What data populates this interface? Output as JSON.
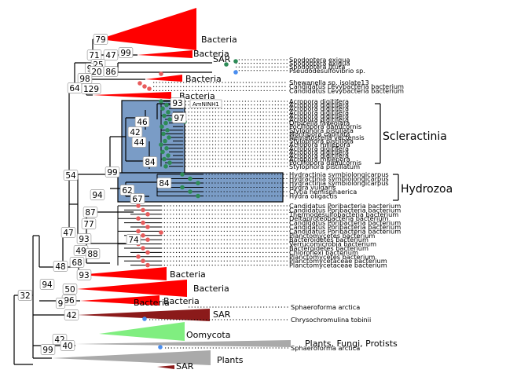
{
  "clade_labels": {
    "bacteria_top": "Bacteria",
    "bacteria_2": "Bacteria",
    "sar_top": "SAR",
    "bacteria_3": "Bacteria",
    "bacteria_4": "Bacteria",
    "scleractinia": "Scleractinia",
    "hydrozoa": "Hydrozoa",
    "bacteria_low1": "Bacteria",
    "bacteria_low2": "Bacteria",
    "bacteria_low3": "Bacteria",
    "bacteria_low4": "Bacteria",
    "sar_low": "SAR",
    "oomycota": "Oomycota",
    "plants_fungi_protists": "Plants, Fungi, Protists",
    "plants": "Plants",
    "sar_bottom": "SAR"
  },
  "callout_label": "AmNINH1",
  "bootstrap": {
    "b79": "79",
    "b71": "71",
    "b47a": "47",
    "b99a": "99",
    "b25": "25",
    "b9a": "9",
    "b20": "20",
    "b86": "86",
    "b98": "98",
    "b129": "129",
    "b64": "64",
    "b93a": "93",
    "b97": "97",
    "b46": "46",
    "b42a": "42",
    "b44": "44",
    "b84a": "84",
    "b99b": "99",
    "b84b": "84",
    "b62": "62",
    "b67": "67",
    "b54": "54",
    "b94a": "94",
    "b87": "87",
    "b77": "77",
    "b47b": "47",
    "b93b": "93",
    "b74": "74",
    "b49": "49",
    "b88": "88",
    "b68": "68",
    "b48": "48",
    "b93c": "93",
    "b50": "50",
    "b94b": "94",
    "b96": "96",
    "b32": "32",
    "b9b": "9",
    "b42b": "42",
    "b42c": "42",
    "b40": "40",
    "b99c": "99"
  },
  "tips_group1": [
    "Spodoptera exigua",
    "Spodoptera exigua",
    "Spodoptera litura",
    "Pseudodesulfovibrio sp."
  ],
  "tips_group2": [
    "Shewanella sp. isolate13",
    "Candidatus Levybacteria bacterium",
    "Candidatus Levybacteria bacterium"
  ],
  "tips_scleractinia": [
    "Acropora digitifera",
    "Acropora digitifera",
    "Acropora digitifera",
    "Acropora digitifera",
    "Acropora digitifera",
    "Acropora digitifera",
    "Orbicella faveolata",
    "Pocillopora damicornis",
    "Stylophora pistillata",
    "Montipora capitata",
    "Nematostella vectensis",
    "Stylophora pistillata",
    "Acropora millepora",
    "Acropora digitifera",
    "Acropora digitifera",
    "Acropora digitifera",
    "Acropora millepora",
    "Pocillopora damicornis",
    "Stylophora pistillatum"
  ],
  "tips_hydrozoa": [
    "Hydractinia symbiolongicarpus",
    "Hydractinia symbiolongicarpus",
    "Hydractinia symbiolongicarpus",
    "Hydra vulgaris",
    "Clytia hemisphaerica",
    "Hydra oligactis"
  ],
  "tips_bacteria_block": [
    "Candidatus Poribacteria bacterium",
    "Candidatus Poribacteria bacterium",
    "Thermodesulfobacteria bacterium",
    "Deltaproteobacteria bacterium",
    "Candidatus Poribacteria bacterium",
    "Candidatus Poribacteria bacterium",
    "Candidatus Poribacteria bacterium",
    "Planctomycetes bacterium",
    "Bacteroidetes bacterium",
    "Verrucomicrobia bacterium",
    "Bacteroidetes bacterium",
    "Chloroflexi bacterium",
    "Planctomycetes bacterium",
    "Planctomycetaceae bacterium",
    "Planctomycetaceae bacterium"
  ],
  "tips_single": {
    "sphaeroforma_1": "Sphaeroforma arctica",
    "chrysochromulina": "Chrysochromulina tobinii",
    "sphaeroforma_2": "Sphaeroforma arctica"
  },
  "colors": {
    "bacteria_red": "#ff0000",
    "sar_darkred": "#8b1a1a",
    "oomycota_green": "#80ee80",
    "plants_gray": "#aaaaaa",
    "box_fill": "#7a9cc6",
    "dot_red": "#e85c5c",
    "dot_green": "#2e8b57",
    "dot_blue": "#4a8ef0"
  }
}
